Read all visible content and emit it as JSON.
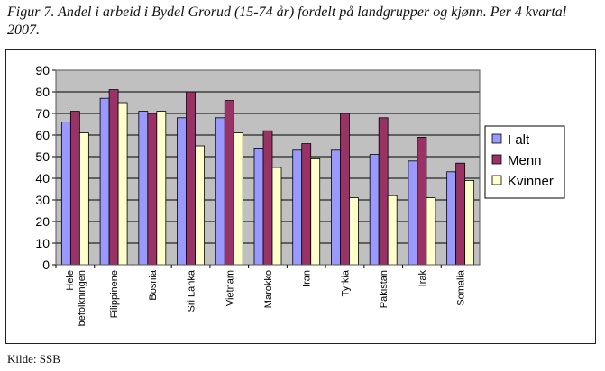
{
  "figure": {
    "caption": "Figur 7. Andel i arbeid i Bydel Grorud (15-74 år) fordelt på landgrupper og kjønn. Per 4 kvartal 2007.",
    "source": "Kilde: SSB"
  },
  "chart_data": {
    "type": "bar",
    "title": "",
    "xlabel": "",
    "ylabel": "",
    "ylim": [
      0,
      90
    ],
    "ytick_step": 10,
    "grid": true,
    "legend_position": "right",
    "categories": [
      "Hele befolkningen",
      "Filippinene",
      "Bosnia",
      "Sri Lanka",
      "Vietnam",
      "Marokko",
      "Iran",
      "Tyrkia",
      "Pakistan",
      "Irak",
      "Somalia"
    ],
    "series": [
      {
        "name": "I alt",
        "color": "#9999ff",
        "values": [
          66,
          77,
          71,
          68,
          68,
          54,
          53,
          53,
          51,
          48,
          43
        ]
      },
      {
        "name": "Menn",
        "color": "#993366",
        "values": [
          71,
          81,
          70,
          80,
          76,
          62,
          56,
          70,
          68,
          59,
          47
        ]
      },
      {
        "name": "Kvinner",
        "color": "#ffffcc",
        "values": [
          61,
          75,
          71,
          55,
          61,
          45,
          49,
          31,
          32,
          31,
          39
        ]
      }
    ],
    "plot_background": "#c0c0c0"
  }
}
